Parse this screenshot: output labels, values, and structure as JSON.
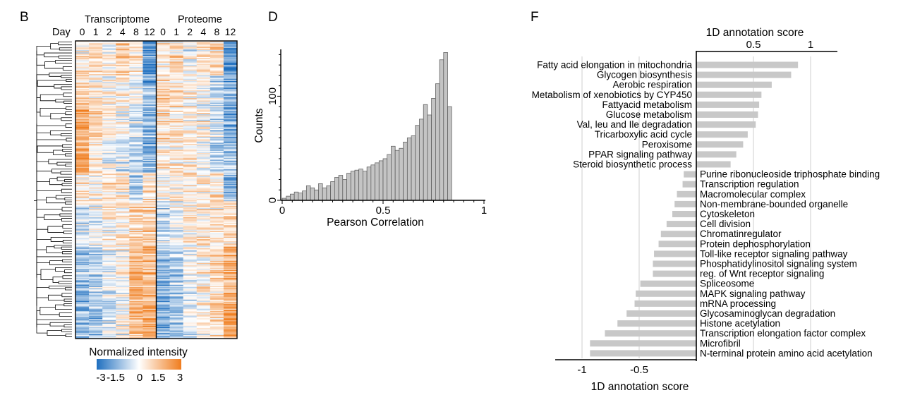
{
  "panels": {
    "b": {
      "letter": "B",
      "day_label": "Day",
      "groups": [
        "Transcriptome",
        "Proteome"
      ],
      "days": [
        "0",
        "1",
        "2",
        "4",
        "8",
        "12"
      ],
      "colorbar_title": "Normalized intensity",
      "colorbar_ticks": [
        "-3",
        "-1.5",
        "0",
        "1.5",
        "3"
      ],
      "colors": {
        "low": "#1f6fbf",
        "mid": "#ffffff",
        "high": "#f07d1e"
      }
    },
    "d": {
      "letter": "D"
    },
    "f": {
      "letter": "F"
    }
  },
  "chart_data": [
    {
      "type": "heatmap",
      "panel": "B",
      "columns": [
        "Transcriptome 0",
        "Transcriptome 1",
        "Transcriptome 2",
        "Transcriptome 4",
        "Transcriptome 8",
        "Transcriptome 12",
        "Proteome 0",
        "Proteome 1",
        "Proteome 2",
        "Proteome 4",
        "Proteome 8",
        "Proteome 12"
      ],
      "zlim": [
        -3,
        3
      ],
      "row_blocks": [
        {
          "rows": 30,
          "profile": [
            0.4,
            0.9,
            0.2,
            1.2,
            0.6,
            -2.2,
            0.4,
            0.7,
            -0.1,
            0.6,
            0.9,
            -2.0
          ]
        },
        {
          "rows": 30,
          "profile": [
            1.0,
            0.6,
            0.3,
            0.5,
            -0.2,
            -1.5,
            1.2,
            0.8,
            0.3,
            0.1,
            -0.5,
            -1.6
          ]
        },
        {
          "rows": 30,
          "profile": [
            1.9,
            0.9,
            0.4,
            0.1,
            -0.5,
            -1.4,
            0.9,
            0.8,
            0.4,
            0.3,
            -0.6,
            -1.5
          ]
        },
        {
          "rows": 25,
          "profile": [
            2.1,
            0.7,
            -0.1,
            -0.3,
            -0.7,
            -1.3,
            0.7,
            0.6,
            0.5,
            0.0,
            -0.8,
            -1.0
          ]
        },
        {
          "rows": 25,
          "profile": [
            0.5,
            0.3,
            0.7,
            0.5,
            -0.9,
            0.6,
            0.3,
            0.2,
            0.4,
            0.5,
            0.6,
            -1.4
          ]
        },
        {
          "rows": 40,
          "profile": [
            -0.5,
            -0.3,
            0.3,
            0.4,
            0.9,
            1.2,
            -0.6,
            -0.3,
            0.3,
            0.5,
            0.6,
            0.8
          ]
        },
        {
          "rows": 40,
          "profile": [
            -1.2,
            -0.8,
            -0.3,
            0.2,
            1.7,
            1.6,
            -1.4,
            -0.8,
            -0.2,
            0.4,
            0.9,
            1.8
          ]
        },
        {
          "rows": 40,
          "profile": [
            -1.5,
            -1.2,
            -0.5,
            0.0,
            1.5,
            1.8,
            -1.6,
            -1.2,
            -0.4,
            0.3,
            1.0,
            2.0
          ]
        }
      ],
      "dendrogram": "row clustering"
    },
    {
      "type": "bar",
      "panel": "D",
      "xlabel": "Pearson Correlation",
      "ylabel": "Counts",
      "xlim": [
        0,
        1
      ],
      "ylim": [
        0,
        145
      ],
      "xticks": [
        0,
        0.5,
        1
      ],
      "yticks": [
        0,
        100
      ],
      "bin_width": 0.02,
      "values": [
        2,
        4,
        6,
        8,
        7,
        9,
        14,
        12,
        10,
        16,
        12,
        14,
        18,
        22,
        24,
        20,
        26,
        28,
        29,
        30,
        28,
        32,
        34,
        36,
        38,
        40,
        44,
        52,
        48,
        50,
        56,
        60,
        62,
        72,
        78,
        92,
        82,
        98,
        112,
        135,
        142,
        90
      ]
    },
    {
      "type": "bar",
      "panel": "F",
      "orientation": "horizontal",
      "xlabel_top": "1D annotation score",
      "xlabel_bottom": "1D annotation score",
      "xlim": [
        -1.2,
        1.25
      ],
      "xticks_top": [
        "0.5",
        "1"
      ],
      "xticks_bottom": [
        "-1",
        "-0.5"
      ],
      "grid_x": [
        -1,
        -0.5,
        0.5,
        1
      ],
      "bar_color": "#c8c8c8",
      "categories": [
        "Fatty acid elongation in mitochondria",
        "Glycogen biosynthesis",
        "Aerobic respiration",
        "Metabolism of xenobiotics by CYP450",
        "Fattyacid metabolism",
        "Glucose metabolism",
        "Val, leu and Ile degradation",
        "Tricarboxylic acid cycle",
        "Peroxisome",
        "PPAR signaling pathway",
        "Steroid biosynthetic process",
        "Purine ribonucleoside triphosphate binding",
        "Transcription regulation",
        "Macromolecular complex",
        "Non-membrane-bounded organelle",
        "Cytoskeleton",
        "Cell division",
        "Chromatinregulator",
        "Protein dephosphorylation",
        "Toll-like receptor signaling pathway",
        "Phosphatidylinositol signaling system",
        "reg. of Wnt receptor signaling",
        "Spliceosome",
        "MAPK signaling pathway",
        "mRNA processing",
        "Glycosaminoglycan degradation",
        "Histone acetylation",
        "Transcription elongation factor complex",
        "Microfibril",
        "N-terminal protein amino acid acetylation"
      ],
      "values": [
        0.89,
        0.83,
        0.66,
        0.57,
        0.55,
        0.54,
        0.52,
        0.45,
        0.41,
        0.35,
        0.3,
        -0.11,
        -0.12,
        -0.17,
        -0.19,
        -0.21,
        -0.26,
        -0.31,
        -0.33,
        -0.37,
        -0.38,
        -0.38,
        -0.49,
        -0.53,
        -0.54,
        -0.61,
        -0.69,
        -0.8,
        -0.93,
        -0.93
      ]
    }
  ]
}
